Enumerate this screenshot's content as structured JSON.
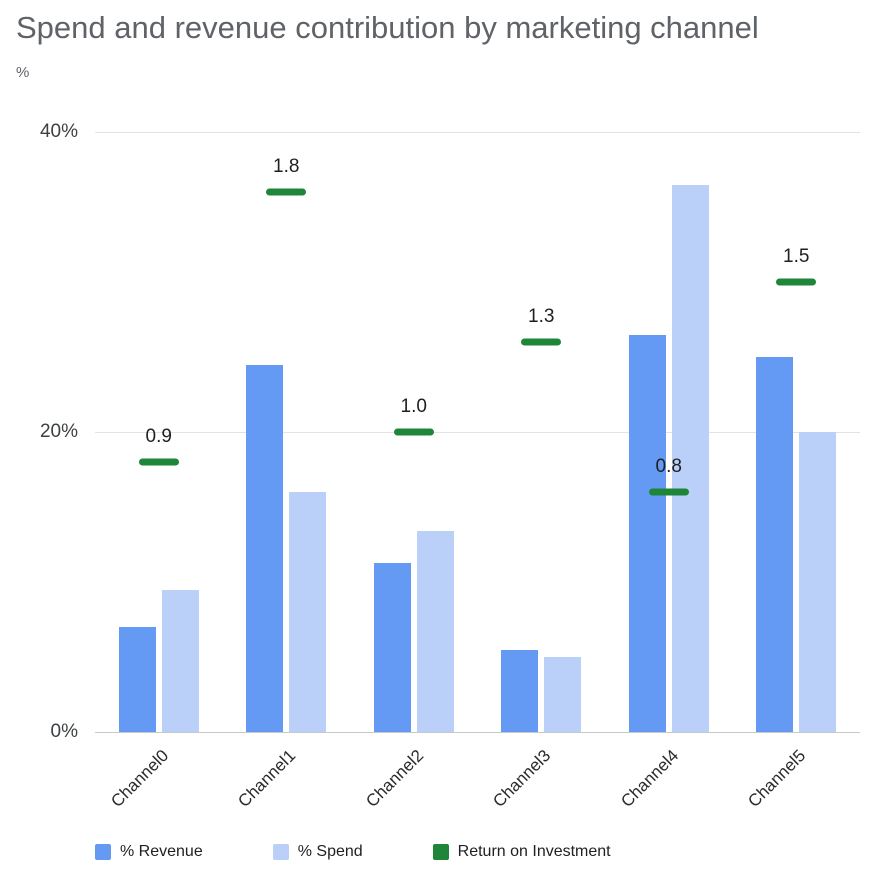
{
  "chart_data": {
    "type": "bar",
    "title": "Spend and revenue contribution by marketing channel",
    "ylabel": "%",
    "categories": [
      "Channel0",
      "Channel1",
      "Channel2",
      "Channel3",
      "Channel4",
      "Channel5"
    ],
    "series": [
      {
        "name": "% Revenue",
        "color": "#649af3",
        "values": [
          7,
          24.5,
          11.3,
          5.5,
          26.5,
          25
        ]
      },
      {
        "name": "% Spend",
        "color": "#bad0f8",
        "values": [
          9.5,
          16,
          13.4,
          5,
          36.5,
          20
        ]
      }
    ],
    "roi_series": {
      "name": "Return on Investment",
      "color": "#1e8539",
      "marker": "dash",
      "values": [
        0.9,
        1.8,
        1.0,
        1.3,
        0.8,
        1.5
      ],
      "secondary_axis_percent_per_unit": 20
    },
    "ylim": [
      0,
      40
    ],
    "yticks": [
      {
        "label": "0%",
        "value": 0
      },
      {
        "label": "20%",
        "value": 20
      },
      {
        "label": "40%",
        "value": 40
      }
    ],
    "grid": true,
    "legend_position": "bottom",
    "x_label_rotation": -45
  }
}
